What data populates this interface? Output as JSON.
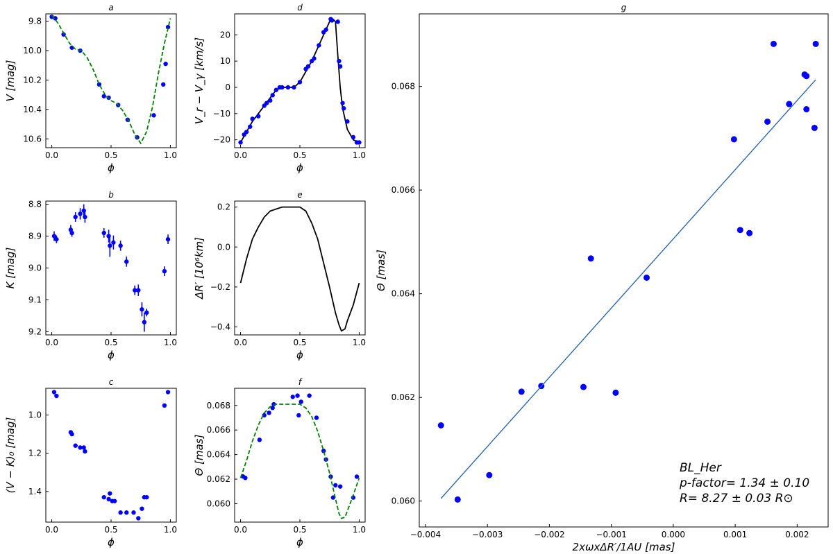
{
  "chart_data": [
    {
      "id": "a",
      "type": "scatter",
      "title": "a",
      "xlabel": "ϕ",
      "ylabel": "V [mag]",
      "xlim": [
        -0.05,
        1.05
      ],
      "ylim": [
        10.66,
        9.75
      ],
      "y_inverted": true,
      "xticks": [
        0.0,
        0.5,
        1.0
      ],
      "yticks": [
        9.8,
        10.0,
        10.2,
        10.4,
        10.6
      ],
      "ytick_decimals": 1,
      "series": [
        {
          "kind": "points",
          "color": "#0000ff",
          "x": [
            0.0,
            0.03,
            0.1,
            0.17,
            0.24,
            0.4,
            0.44,
            0.48,
            0.56,
            0.64,
            0.72,
            0.86,
            0.94,
            0.96,
            0.98
          ],
          "y": [
            9.77,
            9.78,
            9.89,
            9.98,
            10.0,
            10.23,
            10.31,
            10.32,
            10.37,
            10.47,
            10.59,
            10.44,
            10.23,
            10.09,
            9.84
          ]
        },
        {
          "kind": "curve",
          "dashed": true,
          "color": "#008000",
          "x": [
            0.0,
            0.05,
            0.1,
            0.15,
            0.2,
            0.25,
            0.3,
            0.35,
            0.4,
            0.45,
            0.5,
            0.55,
            0.6,
            0.65,
            0.7,
            0.75,
            0.8,
            0.85,
            0.9,
            0.95,
            1.0
          ],
          "y": [
            9.76,
            9.81,
            9.88,
            9.95,
            9.99,
            10.0,
            10.05,
            10.13,
            10.23,
            10.3,
            10.34,
            10.36,
            10.41,
            10.48,
            10.57,
            10.63,
            10.55,
            10.38,
            10.15,
            9.95,
            9.78
          ]
        }
      ]
    },
    {
      "id": "b",
      "type": "scatter",
      "title": "b",
      "xlabel": "ϕ",
      "ylabel": "K [mag]",
      "xlim": [
        -0.05,
        1.05
      ],
      "ylim": [
        9.21,
        8.79
      ],
      "y_inverted": true,
      "xticks": [
        0.0,
        0.5,
        1.0
      ],
      "yticks": [
        8.8,
        8.9,
        9.0,
        9.1,
        9.2
      ],
      "ytick_decimals": 1,
      "series": [
        {
          "kind": "points",
          "color": "#0000ff",
          "errorbars": true,
          "x": [
            0.02,
            0.04,
            0.16,
            0.17,
            0.2,
            0.24,
            0.27,
            0.28,
            0.44,
            0.48,
            0.49,
            0.52,
            0.58,
            0.63,
            0.7,
            0.73,
            0.76,
            0.78,
            0.8,
            0.95,
            0.98
          ],
          "y": [
            8.9,
            8.91,
            8.88,
            8.89,
            8.84,
            8.83,
            8.82,
            8.84,
            8.89,
            8.9,
            8.93,
            8.92,
            8.93,
            8.98,
            9.07,
            9.07,
            9.13,
            9.17,
            9.14,
            9.01,
            8.91
          ],
          "yerr": [
            0.015,
            0.012,
            0.015,
            0.012,
            0.015,
            0.018,
            0.02,
            0.018,
            0.015,
            0.02,
            0.035,
            0.022,
            0.016,
            0.016,
            0.015,
            0.018,
            0.022,
            0.03,
            0.012,
            0.015,
            0.015
          ]
        }
      ]
    },
    {
      "id": "c",
      "type": "scatter",
      "title": "c",
      "xlabel": "ϕ",
      "ylabel": "(V − K)₀ [mag]",
      "xlim": [
        -0.05,
        1.05
      ],
      "ylim": [
        1.56,
        0.86
      ],
      "y_inverted": true,
      "xticks": [
        0.0,
        0.5,
        1.0
      ],
      "yticks": [
        1.0,
        1.2,
        1.4
      ],
      "ytick_decimals": 1,
      "series": [
        {
          "kind": "points",
          "color": "#0000ff",
          "x": [
            0.02,
            0.04,
            0.16,
            0.17,
            0.2,
            0.24,
            0.27,
            0.28,
            0.44,
            0.48,
            0.49,
            0.51,
            0.53,
            0.58,
            0.63,
            0.69,
            0.73,
            0.76,
            0.78,
            0.8,
            0.95,
            0.98
          ],
          "y": [
            0.88,
            0.9,
            1.09,
            1.1,
            1.16,
            1.17,
            1.17,
            1.19,
            1.43,
            1.44,
            1.41,
            1.45,
            1.45,
            1.51,
            1.51,
            1.51,
            1.54,
            1.49,
            1.43,
            1.43,
            0.95,
            0.88
          ]
        }
      ]
    },
    {
      "id": "d",
      "type": "line",
      "title": "d",
      "xlabel": "ϕ",
      "ylabel": "V_r − V_γ [km/s]",
      "xlim": [
        -0.05,
        1.05
      ],
      "ylim": [
        -23,
        28
      ],
      "xticks": [
        0.0,
        0.5,
        1.0
      ],
      "yticks": [
        -20,
        -10,
        0,
        10,
        20
      ],
      "ytick_decimals": 0,
      "series": [
        {
          "kind": "curve",
          "color": "#000000",
          "x": [
            0.0,
            0.05,
            0.1,
            0.15,
            0.2,
            0.25,
            0.3,
            0.35,
            0.4,
            0.45,
            0.5,
            0.55,
            0.6,
            0.65,
            0.7,
            0.75,
            0.78,
            0.8,
            0.82,
            0.84,
            0.86,
            0.9,
            0.95,
            1.0
          ],
          "y": [
            -21,
            -17,
            -13,
            -10,
            -7,
            -4,
            -1,
            0,
            0,
            0,
            2,
            6,
            10,
            15,
            20,
            25,
            26,
            25,
            12,
            0,
            -8,
            -16,
            -20,
            -21
          ]
        },
        {
          "kind": "points",
          "color": "#0000ff",
          "x": [
            0.0,
            0.03,
            0.05,
            0.08,
            0.1,
            0.15,
            0.2,
            0.22,
            0.25,
            0.27,
            0.3,
            0.33,
            0.35,
            0.4,
            0.45,
            0.5,
            0.55,
            0.57,
            0.6,
            0.62,
            0.66,
            0.7,
            0.72,
            0.76,
            0.77,
            0.82,
            0.83,
            0.84,
            0.86,
            0.87,
            0.9,
            0.95,
            0.98,
            1.0
          ],
          "y": [
            -21,
            -18,
            -17,
            -15,
            -12,
            -11,
            -7,
            -6,
            -5,
            -3,
            -1,
            0,
            0,
            0,
            0,
            2,
            7,
            8,
            10,
            11,
            16,
            21,
            22,
            26,
            25.5,
            25,
            10,
            8,
            -6,
            -8,
            -13,
            -19,
            -21,
            -21
          ]
        }
      ]
    },
    {
      "id": "e",
      "type": "line",
      "title": "e",
      "xlabel": "ϕ",
      "ylabel": "ΔR′ [10⁶km]",
      "xlim": [
        -0.05,
        1.05
      ],
      "ylim": [
        -0.44,
        0.23
      ],
      "xticks": [
        0.0,
        0.5,
        1.0
      ],
      "yticks": [
        -0.4,
        -0.2,
        0.0,
        0.2
      ],
      "ytick_decimals": 1,
      "series": [
        {
          "kind": "curve",
          "color": "#000000",
          "x": [
            0.0,
            0.05,
            0.1,
            0.15,
            0.2,
            0.25,
            0.3,
            0.35,
            0.4,
            0.45,
            0.5,
            0.55,
            0.6,
            0.65,
            0.7,
            0.75,
            0.8,
            0.83,
            0.85,
            0.88,
            0.9,
            0.95,
            1.0
          ],
          "y": [
            -0.18,
            -0.06,
            0.04,
            0.1,
            0.15,
            0.18,
            0.19,
            0.2,
            0.2,
            0.2,
            0.2,
            0.18,
            0.12,
            0.04,
            -0.08,
            -0.2,
            -0.33,
            -0.39,
            -0.42,
            -0.41,
            -0.37,
            -0.29,
            -0.18
          ]
        }
      ]
    },
    {
      "id": "f",
      "type": "scatter",
      "title": "f",
      "xlabel": "ϕ",
      "ylabel": "Θ [mas]",
      "xlim": [
        -0.05,
        1.05
      ],
      "ylim": [
        0.0585,
        0.0694
      ],
      "xticks": [
        0.0,
        0.5,
        1.0
      ],
      "yticks": [
        0.06,
        0.062,
        0.064,
        0.066,
        0.068
      ],
      "ytick_decimals": 3,
      "series": [
        {
          "kind": "points",
          "color": "#0000ff",
          "x": [
            0.02,
            0.04,
            0.16,
            0.2,
            0.24,
            0.27,
            0.28,
            0.44,
            0.48,
            0.49,
            0.51,
            0.58,
            0.64,
            0.7,
            0.72,
            0.76,
            0.78,
            0.8,
            0.84,
            0.95,
            0.98
          ],
          "y": [
            0.06222,
            0.0621,
            0.0652,
            0.0672,
            0.0674,
            0.0678,
            0.0681,
            0.0687,
            0.0688,
            0.0672,
            0.0683,
            0.0688,
            0.067,
            0.0643,
            0.0636,
            0.0622,
            0.0605,
            0.0615,
            0.0614,
            0.0605,
            0.0622
          ]
        },
        {
          "kind": "curve",
          "dashed": true,
          "color": "#008000",
          "x": [
            0.0,
            0.05,
            0.1,
            0.15,
            0.2,
            0.25,
            0.3,
            0.35,
            0.4,
            0.45,
            0.5,
            0.55,
            0.6,
            0.65,
            0.7,
            0.75,
            0.8,
            0.83,
            0.85,
            0.88,
            0.9,
            0.95,
            1.0
          ],
          "y": [
            0.0621,
            0.0635,
            0.0651,
            0.0664,
            0.0674,
            0.0679,
            0.0681,
            0.0681,
            0.0681,
            0.0681,
            0.0681,
            0.0678,
            0.0671,
            0.0659,
            0.0643,
            0.0625,
            0.0604,
            0.0592,
            0.0588,
            0.0589,
            0.0594,
            0.0607,
            0.0621
          ]
        }
      ]
    },
    {
      "id": "g",
      "type": "scatter",
      "title": "g",
      "xlabel": "2xωxΔR′/1AU [mas]",
      "ylabel": "Θ [mas]",
      "xlim": [
        -0.0041,
        0.0025
      ],
      "ylim": [
        0.0595,
        0.0694
      ],
      "xticks": [
        -0.004,
        -0.003,
        -0.002,
        -0.001,
        0.0,
        0.001,
        0.002
      ],
      "yticks": [
        0.06,
        0.062,
        0.064,
        0.066,
        0.068
      ],
      "xtick_decimals": 3,
      "ytick_decimals": 3,
      "series": [
        {
          "kind": "points",
          "color": "#0000ff",
          "x": [
            -0.00375,
            -0.00348,
            -0.00297,
            -0.00245,
            -0.00213,
            -0.00145,
            -0.00133,
            -0.00093,
            -0.00043,
            0.00098,
            0.00108,
            0.00123,
            0.00152,
            0.00162,
            0.00187,
            0.00212,
            0.00215,
            0.00215,
            0.00228,
            0.0023
          ],
          "y": [
            0.06146,
            0.06003,
            0.0605,
            0.06211,
            0.06222,
            0.0622,
            0.06468,
            0.06209,
            0.06431,
            0.06698,
            0.06523,
            0.06517,
            0.06732,
            0.06882,
            0.06766,
            0.06823,
            0.06756,
            0.0682,
            0.0672,
            0.06882
          ]
        },
        {
          "kind": "line",
          "color": "#1f5fa6",
          "x": [
            -0.00375,
            0.0023
          ],
          "y": [
            0.06005,
            0.06813
          ]
        }
      ]
    }
  ],
  "annotation": {
    "star": "BL_Her",
    "pfactor": "p-factor= 1.34 ± 0.10",
    "radius": "R= 8.27 ± 0.03 R⊙"
  }
}
